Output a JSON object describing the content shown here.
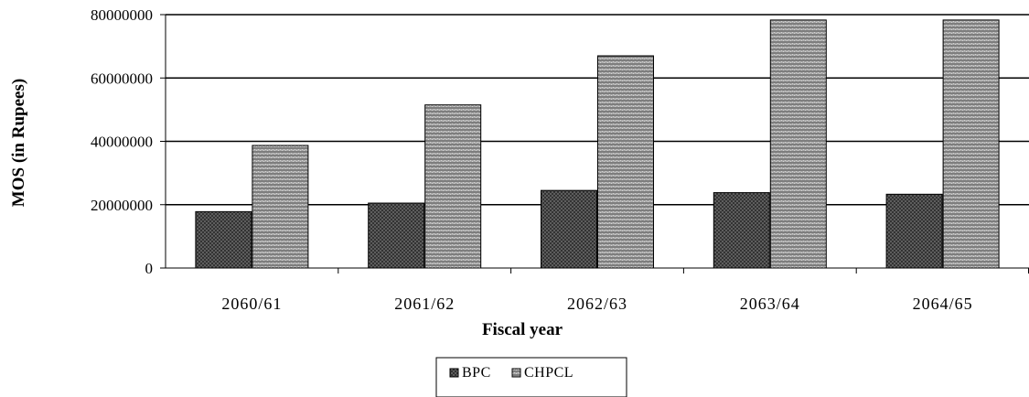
{
  "chart_data": {
    "type": "bar",
    "categories": [
      "2060/61",
      "2061/62",
      "2062/63",
      "2063/64",
      "2064/65"
    ],
    "series": [
      {
        "name": "BPC",
        "values": [
          17800000,
          20500000,
          24500000,
          23800000,
          23300000
        ]
      },
      {
        "name": "CHPCL",
        "values": [
          38700000,
          51500000,
          67000000,
          78300000,
          78300000
        ]
      }
    ],
    "xlabel": "Fiscal year",
    "ylabel": "MOS (in Rupees)",
    "ylim": [
      0,
      80000000
    ],
    "yticks": [
      "0",
      "20000000",
      "40000000",
      "60000000",
      "80000000"
    ],
    "grid": true,
    "legend": "bottom-center",
    "colors": {
      "BPC": "#5a5a5a",
      "CHPCL": "#8a8a8a",
      "grid": "#000000"
    }
  }
}
